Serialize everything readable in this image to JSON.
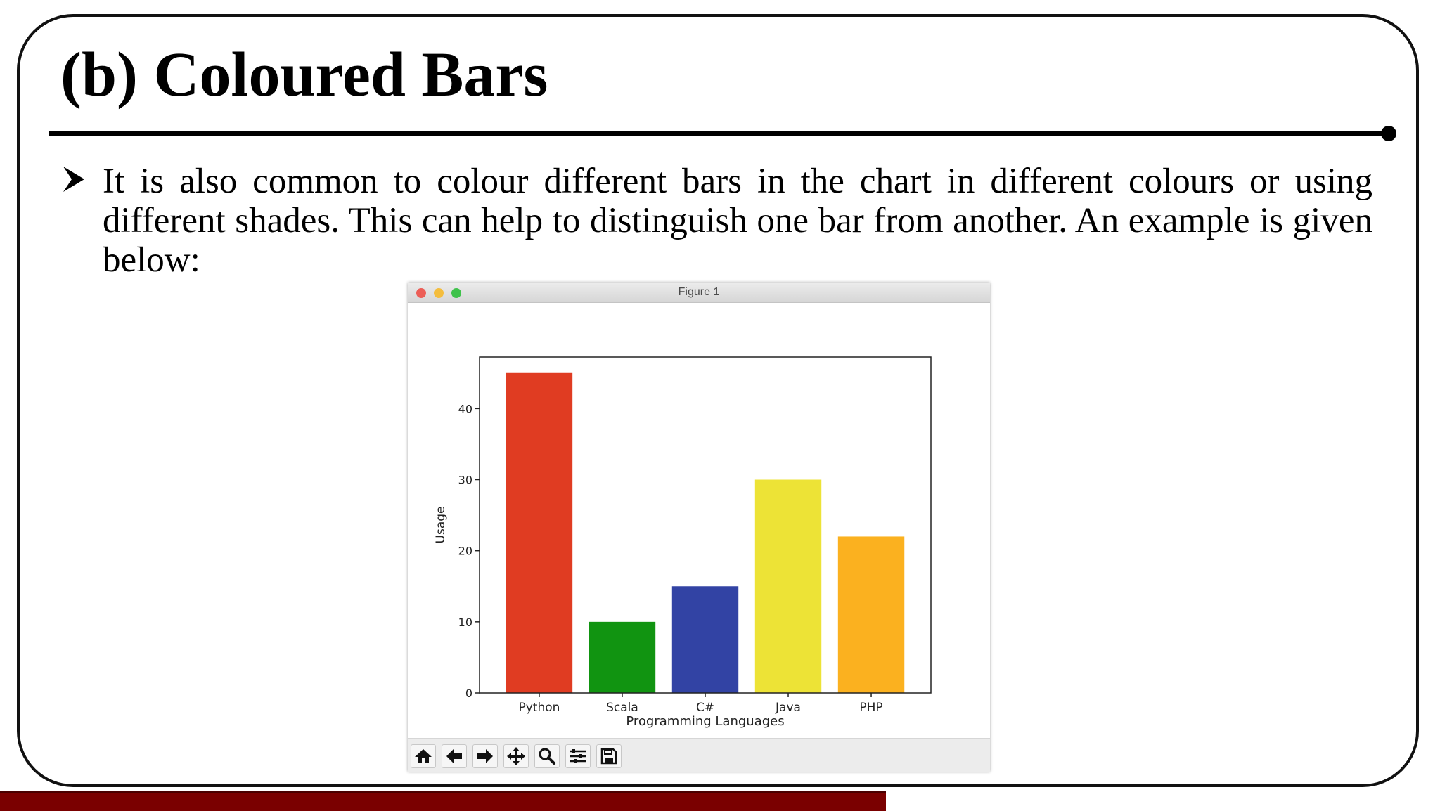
{
  "slide": {
    "title": "(b) Coloured Bars",
    "bullet_text": "It is also common to colour different bars in the chart in different colours or using different shades. This can help to distinguish one bar from another. An example is given below:"
  },
  "window": {
    "title": "Figure 1",
    "toolbar": [
      {
        "name": "home-icon"
      },
      {
        "name": "back-arrow-icon"
      },
      {
        "name": "forward-arrow-icon"
      },
      {
        "name": "pan-icon"
      },
      {
        "name": "zoom-icon"
      },
      {
        "name": "configure-subplots-icon"
      },
      {
        "name": "save-icon"
      }
    ]
  },
  "chart_data": {
    "type": "bar",
    "categories": [
      "Python",
      "Scala",
      "C#",
      "Java",
      "PHP"
    ],
    "values": [
      45,
      10,
      15,
      30,
      22
    ],
    "colors": [
      "#e03c22",
      "#119411",
      "#3243a4",
      "#ede336",
      "#fbb11f"
    ],
    "xlabel": "Programming Languages",
    "ylabel": "Usage",
    "yticks": [
      0,
      10,
      20,
      30,
      40
    ],
    "ylim": [
      0,
      47.25
    ],
    "grid": false
  },
  "colors": {
    "frame": "#111111",
    "bottom_bar": "#7a0000"
  }
}
